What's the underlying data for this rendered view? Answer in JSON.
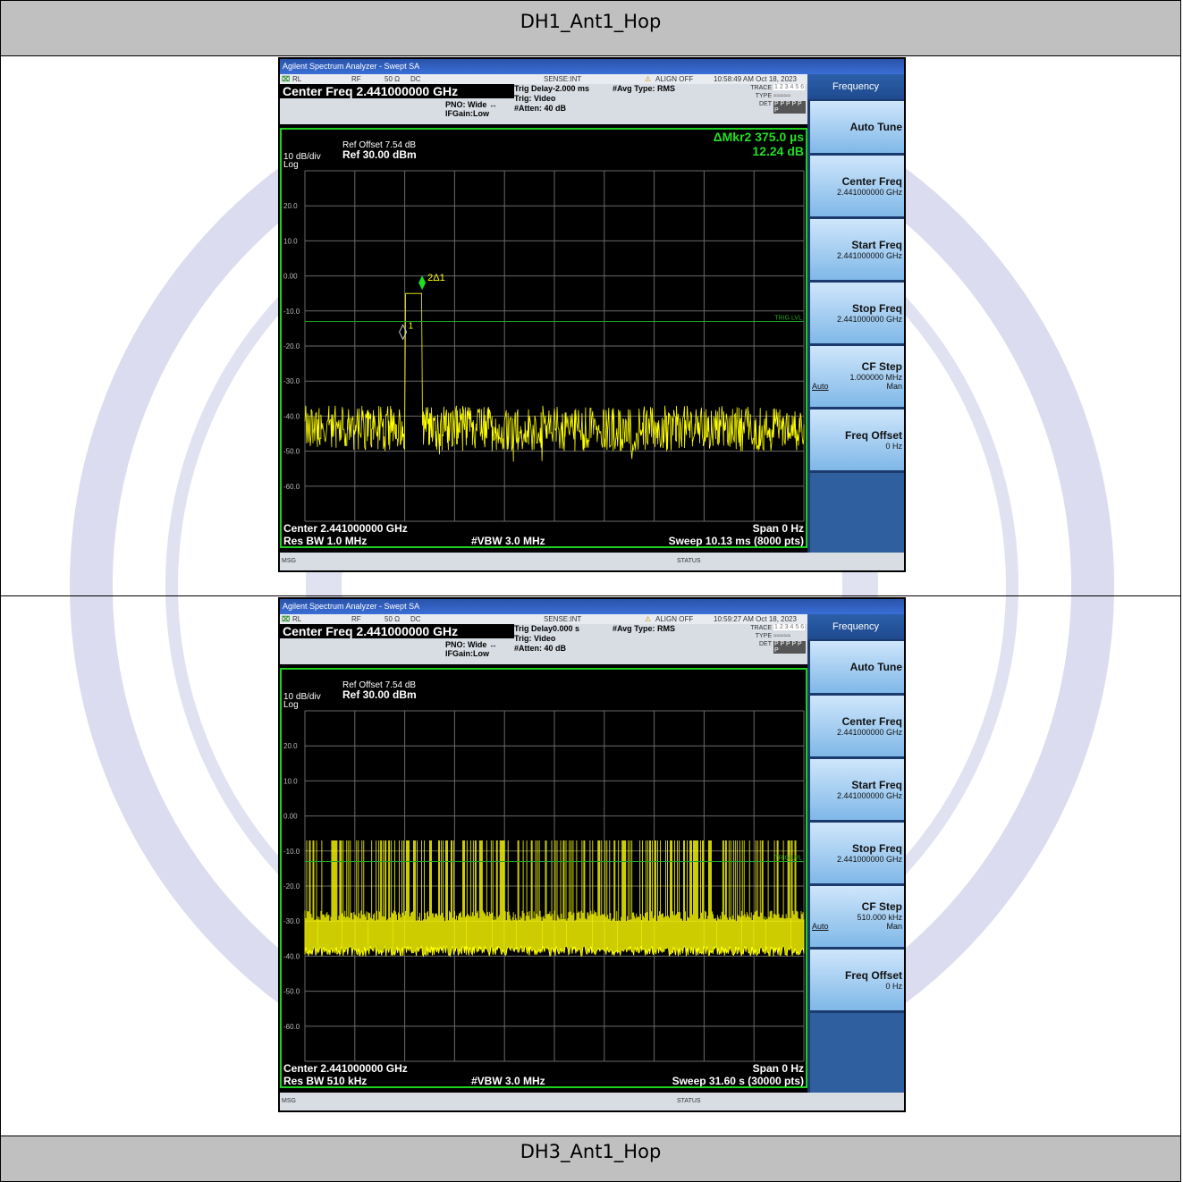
{
  "headers": {
    "top": "DH1_Ant1_Hop",
    "bottom": "DH3_Ant1_Hop"
  },
  "colors": {
    "trace": "#ffff00",
    "grid": "#6a6a6a",
    "marker": "#22dd22",
    "plot_border": "#1fd11f",
    "screen_bg": "#000000"
  },
  "analyzers": [
    {
      "title_bar": "Agilent Spectrum Analyzer - Swept SA",
      "rl_row": {
        "rl": "RL",
        "rf": "RF",
        "ohm": "50 Ω",
        "dc": "DC",
        "sense": "SENSE:INT",
        "align": "ALIGN OFF",
        "time": "10:58:49 AM Oct 18, 2023"
      },
      "center_freq": "Center Freq 2.441000000 GHz",
      "pno": "PNO: Wide",
      "ifgain": "IFGain:Low",
      "trig_delay": "Trig Delay-2.000 ms",
      "trig": "Trig: Video",
      "atten": "#Atten: 40 dB",
      "avg_type": "#Avg Type: RMS",
      "trace_label": "TRACE",
      "type_label": "TYPE",
      "det_label": "DET",
      "trace_nums": "1 2 3 4 5 6",
      "det_vals": "P P P P P P",
      "ref_offset": "Ref Offset 7.54 dB",
      "scale": "10 dB/div",
      "log": "Log",
      "ref_level": "Ref 30.00 dBm",
      "marker_readout_1": "ΔMkr2 375.0 µs",
      "marker_readout_2": "12.24 dB",
      "trig_lvl_label": "TRIG LVL",
      "y_ticks": [
        "20.0",
        "10.0",
        "0.00",
        "-10.0",
        "-20.0",
        "-30.0",
        "-40.0",
        "-50.0",
        "-60.0"
      ],
      "footer_center": "Center 2.441000000 GHz",
      "footer_span": "Span 0 Hz",
      "footer_rbw": "Res BW 1.0 MHz",
      "footer_vbw": "#VBW 3.0 MHz",
      "footer_sweep": "Sweep  10.13 ms (8000 pts)",
      "msg": "MSG",
      "status": "STATUS",
      "softkeys": {
        "menu": "Frequency",
        "auto_tune": "Auto Tune",
        "center_freq": {
          "title": "Center Freq",
          "value": "2.441000000 GHz"
        },
        "start_freq": {
          "title": "Start Freq",
          "value": "2.441000000 GHz"
        },
        "stop_freq": {
          "title": "Stop Freq",
          "value": "2.441000000 GHz"
        },
        "cf_step": {
          "title": "CF Step",
          "value": "1.000000 MHz",
          "auto": "Auto",
          "man": "Man"
        },
        "freq_offset": {
          "title": "Freq Offset",
          "value": "0 Hz"
        }
      },
      "markers": {
        "m1": "1",
        "m2": "2Δ1"
      }
    },
    {
      "title_bar": "Agilent Spectrum Analyzer - Swept SA",
      "rl_row": {
        "rl": "RL",
        "rf": "RF",
        "ohm": "50 Ω",
        "dc": "DC",
        "sense": "SENSE:INT",
        "align": "ALIGN OFF",
        "time": "10:59:27 AM Oct 18, 2023"
      },
      "center_freq": "Center Freq 2.441000000 GHz",
      "pno": "PNO: Wide",
      "ifgain": "IFGain:Low",
      "trig_delay": "Trig Delay0.000 s",
      "trig": "Trig: Video",
      "atten": "#Atten: 40 dB",
      "avg_type": "#Avg Type: RMS",
      "trace_label": "TRACE",
      "type_label": "TYPE",
      "det_label": "DET",
      "trace_nums": "1 2 3 4 5 6",
      "det_vals": "P P P P P P",
      "ref_offset": "Ref Offset 7.54 dB",
      "scale": "10 dB/div",
      "log": "Log",
      "ref_level": "Ref 30.00 dBm",
      "marker_readout_1": "",
      "marker_readout_2": "",
      "trig_lvl_label": "TRIG LVL",
      "y_ticks": [
        "20.0",
        "10.0",
        "0.00",
        "-10.0",
        "-20.0",
        "-30.0",
        "-40.0",
        "-50.0",
        "-60.0"
      ],
      "footer_center": "Center 2.441000000 GHz",
      "footer_span": "Span 0 Hz",
      "footer_rbw": "Res BW 510 kHz",
      "footer_vbw": "#VBW 3.0 MHz",
      "footer_sweep": "Sweep  31.60 s (30000 pts)",
      "msg": "MSG",
      "status": "STATUS",
      "softkeys": {
        "menu": "Frequency",
        "auto_tune": "Auto Tune",
        "center_freq": {
          "title": "Center Freq",
          "value": "2.441000000 GHz"
        },
        "start_freq": {
          "title": "Start Freq",
          "value": "2.441000000 GHz"
        },
        "stop_freq": {
          "title": "Stop Freq",
          "value": "2.441000000 GHz"
        },
        "cf_step": {
          "title": "CF Step",
          "value": "510.000 kHz",
          "auto": "Auto",
          "man": "Man"
        },
        "freq_offset": {
          "title": "Freq Offset",
          "value": "0 Hz"
        }
      },
      "markers": {
        "m1": "",
        "m2": ""
      }
    }
  ],
  "chart_data": [
    {
      "type": "line",
      "title": "",
      "x_unit": "time",
      "ylabel": "dBm",
      "ylim": [
        -70,
        30
      ],
      "trigger_level_dbm": -13,
      "noise_floor_dbm": [
        -50,
        -37
      ],
      "burst": {
        "start_frac": 0.2,
        "end_frac": 0.235,
        "level_dbm": -5
      },
      "markers": [
        {
          "name": "1",
          "level_dbm": -16
        },
        {
          "name": "2Δ1",
          "delta_time": "375.0 µs",
          "delta_db": 12.24
        }
      ]
    },
    {
      "type": "line",
      "title": "",
      "x_unit": "time",
      "ylabel": "dBm",
      "ylim": [
        -70,
        30
      ],
      "trigger_level_dbm": -13,
      "noise_floor_dbm": [
        -40,
        -30
      ],
      "burst_level_dbm": -7
    }
  ]
}
